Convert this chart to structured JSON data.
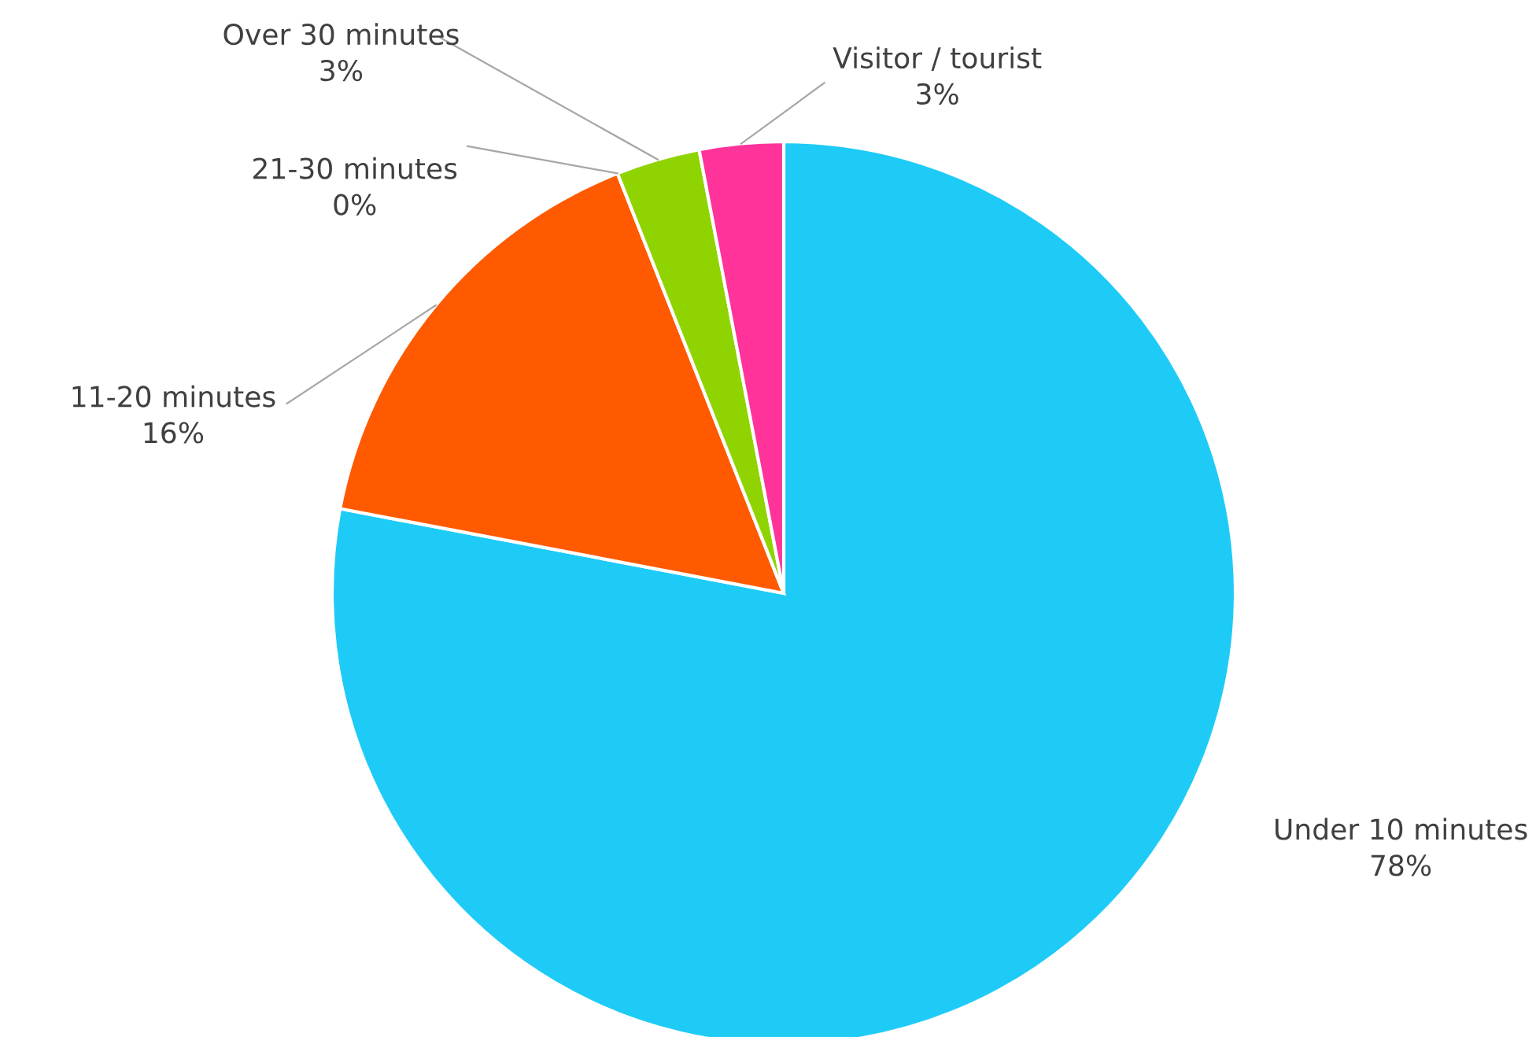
{
  "chart_data": {
    "type": "pie",
    "categories": [
      "Under 10 minutes",
      "11-20 minutes",
      "21-30 minutes",
      "Over 30 minutes",
      "Visitor / tourist"
    ],
    "values": [
      78,
      16,
      0,
      3,
      3
    ],
    "value_labels": [
      "78%",
      "16%",
      "0%",
      "3%",
      "3%"
    ],
    "colors": [
      "#1ecbf7",
      "#ff5a00",
      "#a0a0a0",
      "#8fd400",
      "#ff3399"
    ],
    "legend": false
  }
}
